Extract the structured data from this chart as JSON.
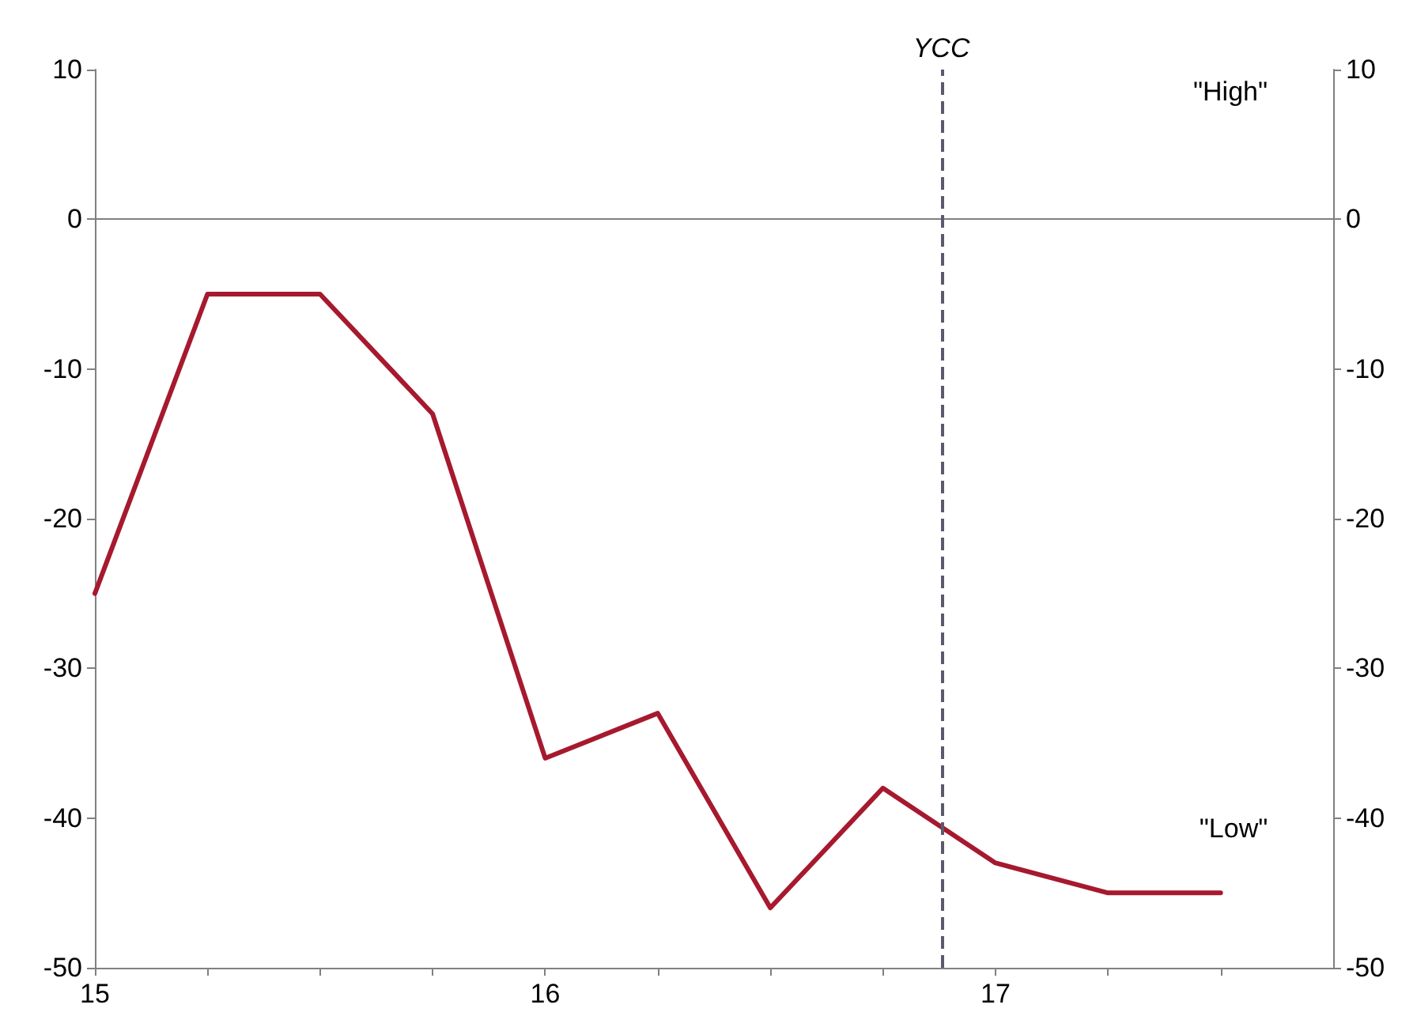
{
  "chart_data": {
    "type": "line",
    "x": [
      15,
      15.25,
      15.5,
      15.75,
      16,
      16.25,
      16.5,
      16.75,
      17,
      17.25,
      17.5
    ],
    "series": [
      {
        "color": "#a6192e",
        "values": [
          -25,
          -5,
          -5,
          -13,
          -36,
          -33,
          -46,
          -38,
          -43,
          -45,
          -45
        ]
      }
    ],
    "xlim": [
      15,
      17.75
    ],
    "xticks": [
      15,
      {
        "value": 15.25,
        "label": null
      },
      {
        "value": 15.5,
        "label": null
      },
      {
        "value": 15.75,
        "label": null
      },
      16,
      {
        "value": 16.25,
        "label": null
      },
      {
        "value": 16.5,
        "label": null
      },
      {
        "value": 16.75,
        "label": null
      },
      17,
      {
        "value": 17.25,
        "label": null
      },
      {
        "value": 17.5,
        "label": null
      }
    ],
    "ylim": [
      -50,
      10
    ],
    "yticks": [
      -50,
      -40,
      -30,
      -20,
      -10,
      0,
      10
    ],
    "y2lim": [
      -50,
      10
    ],
    "y2ticks": [
      -50,
      -40,
      -30,
      -20,
      -10,
      0,
      10
    ],
    "ref_lines": [
      {
        "axis": "y",
        "value": 0,
        "label": null,
        "color": "#808080",
        "line_style": "solid"
      },
      {
        "axis": "x",
        "value": 16.88,
        "label": "YCC",
        "color": "#5a5a6e",
        "line_style": "dashed"
      }
    ],
    "annotations": [
      "\"High\"",
      "\"Low\""
    ],
    "grid": false,
    "marker": "none",
    "line_style": "solid"
  }
}
